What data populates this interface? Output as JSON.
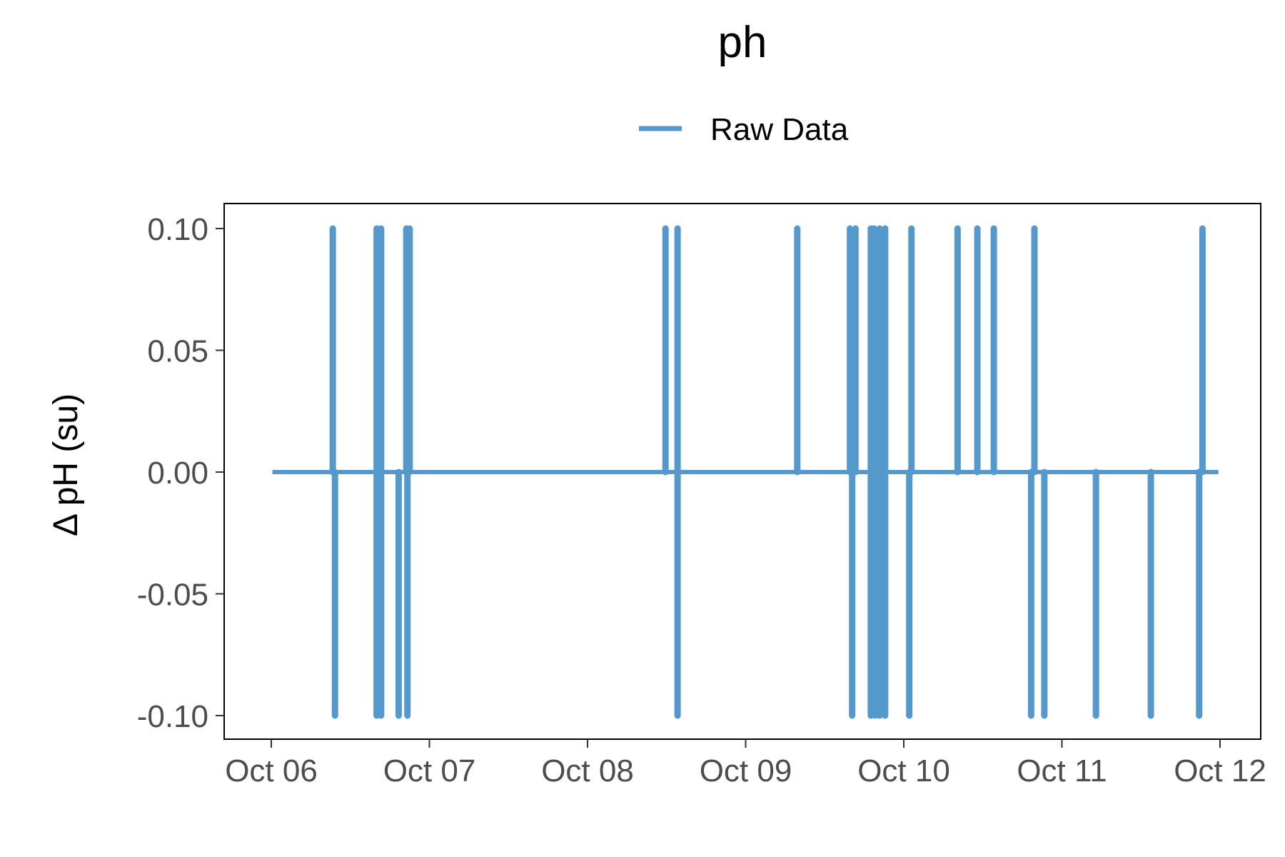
{
  "chart_data": {
    "type": "line",
    "title": "ph",
    "ylabel": "Δ pH (su)",
    "xlabel": "",
    "x_type": "date",
    "xlim": [
      "Oct 06 00:00",
      "Oct 12 00:00"
    ],
    "ylim": [
      -0.1,
      0.1
    ],
    "x_ticks": [
      "Oct 06",
      "Oct 07",
      "Oct 08",
      "Oct 09",
      "Oct 10",
      "Oct 11",
      "Oct 12"
    ],
    "y_ticks": [
      "0.10",
      "0.05",
      "0.00",
      "-0.05",
      "-0.10"
    ],
    "y_tick_values": [
      0.1,
      0.05,
      0.0,
      -0.05,
      -0.1
    ],
    "grid": false,
    "legend": {
      "position": "top",
      "entries": [
        "Raw Data"
      ]
    },
    "series": [
      {
        "name": "Raw Data",
        "color": "#5599cc",
        "baseline": 0.0,
        "x_range": [
          "Oct 06 00:10",
          "Oct 11 23:45"
        ],
        "spikes": [
          {
            "x": "Oct 06 09:20",
            "y": 0.1
          },
          {
            "x": "Oct 06 09:40",
            "y": -0.1
          },
          {
            "x": "Oct 06 16:00",
            "y": 0.1
          },
          {
            "x": "Oct 06 16:00",
            "y": -0.1
          },
          {
            "x": "Oct 06 16:40",
            "y": 0.1
          },
          {
            "x": "Oct 06 16:40",
            "y": -0.1
          },
          {
            "x": "Oct 06 19:20",
            "y": -0.1
          },
          {
            "x": "Oct 06 20:30",
            "y": 0.1
          },
          {
            "x": "Oct 06 20:40",
            "y": -0.1
          },
          {
            "x": "Oct 06 21:00",
            "y": 0.1
          },
          {
            "x": "Oct 08 11:50",
            "y": 0.1
          },
          {
            "x": "Oct 08 13:40",
            "y": 0.1
          },
          {
            "x": "Oct 08 13:40",
            "y": -0.1
          },
          {
            "x": "Oct 09 07:50",
            "y": 0.1
          },
          {
            "x": "Oct 09 15:50",
            "y": 0.1
          },
          {
            "x": "Oct 09 16:10",
            "y": -0.1
          },
          {
            "x": "Oct 09 16:40",
            "y": 0.1
          },
          {
            "x": "Oct 09 19:00",
            "y": 0.1
          },
          {
            "x": "Oct 09 19:00",
            "y": -0.1
          },
          {
            "x": "Oct 09 19:30",
            "y": 0.1
          },
          {
            "x": "Oct 09 19:40",
            "y": -0.1
          },
          {
            "x": "Oct 09 20:20",
            "y": 0.1
          },
          {
            "x": "Oct 09 20:20",
            "y": -0.1
          },
          {
            "x": "Oct 09 21:10",
            "y": 0.1
          },
          {
            "x": "Oct 09 21:10",
            "y": -0.1
          },
          {
            "x": "Oct 10 00:50",
            "y": -0.1
          },
          {
            "x": "Oct 10 01:10",
            "y": 0.1
          },
          {
            "x": "Oct 10 08:10",
            "y": 0.1
          },
          {
            "x": "Oct 10 11:10",
            "y": 0.1
          },
          {
            "x": "Oct 10 13:40",
            "y": 0.1
          },
          {
            "x": "Oct 10 19:20",
            "y": -0.1
          },
          {
            "x": "Oct 10 19:50",
            "y": 0.1
          },
          {
            "x": "Oct 10 21:20",
            "y": -0.1
          },
          {
            "x": "Oct 11 05:10",
            "y": -0.1
          },
          {
            "x": "Oct 11 13:30",
            "y": -0.1
          },
          {
            "x": "Oct 11 20:50",
            "y": -0.1
          },
          {
            "x": "Oct 11 21:20",
            "y": 0.1
          }
        ]
      }
    ]
  }
}
